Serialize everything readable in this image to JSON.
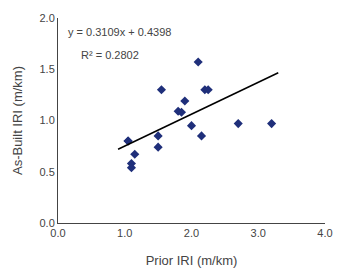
{
  "chart_data": {
    "type": "scatter",
    "x_label": "Prior IRI (m/km)",
    "y_label": "As-Built IRI (m/km)",
    "annotations": [
      "y = 0.3109x + 0.4398",
      "R² = 0.2802"
    ],
    "series": [
      {
        "type": "scatter",
        "marker": "diamond",
        "color": "#1F2F7A",
        "x": [
          1.05,
          1.05,
          1.1,
          1.1,
          1.15,
          1.5,
          1.5,
          1.55,
          1.8,
          1.85,
          1.9,
          2.0,
          2.1,
          2.15,
          2.2,
          2.25,
          2.7,
          3.2
        ],
        "values": [
          0.8,
          0.8,
          0.54,
          0.58,
          0.67,
          0.85,
          0.74,
          1.3,
          1.09,
          1.08,
          1.19,
          0.95,
          1.57,
          0.85,
          1.3,
          1.3,
          0.97,
          0.97
        ]
      },
      {
        "type": "line",
        "line_style": "solid",
        "color": "#000000",
        "x": [
          0.9,
          3.3
        ],
        "values": [
          0.71961,
          1.46577
        ]
      }
    ],
    "xlim": [
      0.0,
      4.0
    ],
    "ylim": [
      0.0,
      2.0
    ],
    "xticks": [
      {
        "value": 0,
        "label": "0.0"
      },
      {
        "value": 1,
        "label": "1.0"
      },
      {
        "value": 2,
        "label": "2.0"
      },
      {
        "value": 3,
        "label": "3.0"
      },
      {
        "value": 4,
        "label": "4.0"
      }
    ],
    "yticks": [
      {
        "value": 0,
        "label": "0.0"
      },
      0.5,
      {
        "value": 1,
        "label": "1.0"
      },
      1.5,
      {
        "value": 2,
        "label": "2.0"
      }
    ],
    "grid": false
  }
}
